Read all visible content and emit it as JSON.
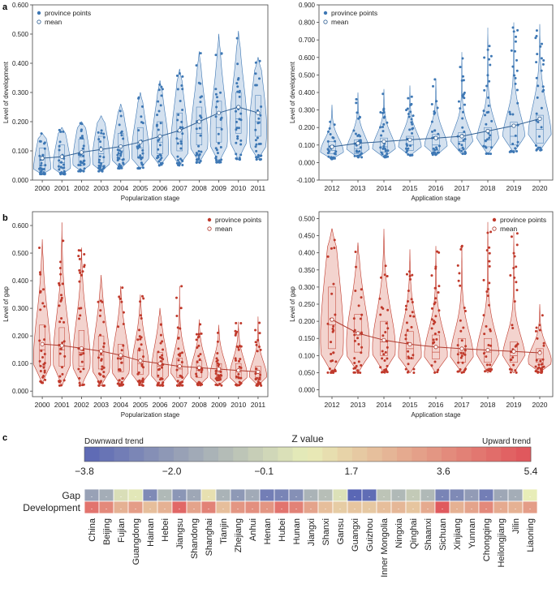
{
  "panel_letters": [
    "a",
    "b",
    "c"
  ],
  "colors": {
    "blue": "#3d77b4",
    "blue_fill": "#cddcec",
    "blue_mean": "#2f5f93",
    "red": "#c0392b",
    "red_fill": "#f1cbc5",
    "red_mean": "#b03a2e",
    "axis": "#444444",
    "scale_low": "#5a67b5",
    "scale_mid": "#e8edb8",
    "scale_high": "#e0535a"
  },
  "chart_data": [
    {
      "type": "violin",
      "id": "a_left",
      "panel": "a",
      "xlabel": "Popularization stage",
      "ylabel": "Level of development",
      "categories": [
        "2000",
        "2001",
        "2002",
        "2003",
        "2004",
        "2005",
        "2006",
        "2007",
        "2008",
        "2009",
        "2010",
        "2011"
      ],
      "ylim": [
        0,
        0.6
      ],
      "yticks": [
        0.0,
        0.1,
        0.2,
        0.3,
        0.4,
        0.5,
        0.6
      ],
      "ytick_labels": [
        "0.000",
        "0.100",
        "0.200",
        "0.300",
        "0.400",
        "0.500",
        "0.600"
      ],
      "legend": [
        "province points",
        "mean"
      ],
      "max": [
        0.16,
        0.18,
        0.2,
        0.22,
        0.26,
        0.3,
        0.34,
        0.38,
        0.44,
        0.5,
        0.51,
        0.42
      ],
      "min": [
        0.02,
        0.02,
        0.03,
        0.03,
        0.04,
        0.04,
        0.05,
        0.05,
        0.06,
        0.06,
        0.07,
        0.07
      ],
      "median": [
        0.05,
        0.06,
        0.08,
        0.09,
        0.1,
        0.11,
        0.13,
        0.14,
        0.16,
        0.18,
        0.21,
        0.2
      ],
      "q1": [
        0.03,
        0.04,
        0.05,
        0.06,
        0.07,
        0.08,
        0.09,
        0.1,
        0.12,
        0.13,
        0.16,
        0.15
      ],
      "q3": [
        0.11,
        0.12,
        0.14,
        0.15,
        0.16,
        0.18,
        0.2,
        0.23,
        0.25,
        0.27,
        0.3,
        0.29
      ],
      "mean": [
        0.075,
        0.08,
        0.095,
        0.105,
        0.115,
        0.13,
        0.15,
        0.17,
        0.2,
        0.23,
        0.25,
        0.23
      ]
    },
    {
      "type": "violin",
      "id": "a_right",
      "panel": "a",
      "xlabel": "Application stage",
      "ylabel": "Level of development",
      "categories": [
        "2012",
        "2013",
        "2014",
        "2015",
        "2016",
        "2017",
        "2018",
        "2019",
        "2020"
      ],
      "ylim": [
        -0.1,
        0.9
      ],
      "yticks": [
        -0.1,
        0.0,
        0.1,
        0.2,
        0.3,
        0.4,
        0.5,
        0.6,
        0.7,
        0.8,
        0.9
      ],
      "ytick_labels": [
        "-0.100",
        "0.000",
        "0.100",
        "0.200",
        "0.300",
        "0.400",
        "0.500",
        "0.600",
        "0.700",
        "0.800",
        "0.900"
      ],
      "legend": [
        "province points",
        "mean"
      ],
      "max": [
        0.33,
        0.4,
        0.42,
        0.44,
        0.48,
        0.63,
        0.77,
        0.8,
        0.79
      ],
      "min": [
        0.02,
        0.03,
        0.03,
        0.04,
        0.04,
        0.05,
        0.05,
        0.06,
        0.07
      ],
      "median": [
        0.07,
        0.08,
        0.09,
        0.1,
        0.1,
        0.12,
        0.13,
        0.15,
        0.19
      ],
      "q1": [
        0.05,
        0.05,
        0.06,
        0.07,
        0.07,
        0.08,
        0.09,
        0.1,
        0.11
      ],
      "q3": [
        0.12,
        0.13,
        0.14,
        0.15,
        0.16,
        0.17,
        0.2,
        0.23,
        0.27
      ],
      "mean": [
        0.09,
        0.11,
        0.12,
        0.13,
        0.14,
        0.15,
        0.18,
        0.21,
        0.25
      ]
    },
    {
      "type": "violin",
      "id": "b_left",
      "panel": "b",
      "xlabel": "Popularization stage",
      "ylabel": "Level of gap",
      "categories": [
        "2000",
        "2001",
        "2002",
        "2003",
        "2004",
        "2005",
        "2006",
        "2007",
        "2008",
        "2009",
        "2010",
        "2011"
      ],
      "ylim": [
        -0.02,
        0.65
      ],
      "yticks": [
        0.0,
        0.1,
        0.2,
        0.3,
        0.4,
        0.5,
        0.6
      ],
      "ytick_labels": [
        "0.000",
        "0.100",
        "0.200",
        "0.300",
        "0.400",
        "0.500",
        "0.600"
      ],
      "legend": [
        "province points",
        "mean"
      ],
      "max": [
        0.55,
        0.61,
        0.52,
        0.42,
        0.38,
        0.35,
        0.3,
        0.38,
        0.26,
        0.24,
        0.25,
        0.27
      ],
      "min": [
        0.03,
        0.02,
        0.02,
        0.02,
        0.02,
        0.02,
        0.02,
        0.02,
        0.02,
        0.02,
        0.02,
        0.02
      ],
      "median": [
        0.15,
        0.15,
        0.14,
        0.13,
        0.12,
        0.1,
        0.09,
        0.08,
        0.075,
        0.07,
        0.07,
        0.065
      ],
      "q1": [
        0.09,
        0.09,
        0.09,
        0.08,
        0.07,
        0.06,
        0.05,
        0.05,
        0.05,
        0.045,
        0.045,
        0.04
      ],
      "q3": [
        0.24,
        0.23,
        0.22,
        0.2,
        0.17,
        0.15,
        0.14,
        0.12,
        0.11,
        0.1,
        0.1,
        0.09
      ],
      "mean": [
        0.17,
        0.165,
        0.155,
        0.145,
        0.13,
        0.11,
        0.1,
        0.09,
        0.085,
        0.08,
        0.075,
        0.07
      ]
    },
    {
      "type": "violin",
      "id": "b_right",
      "panel": "b",
      "xlabel": "Application stage",
      "ylabel": "Level of gap",
      "categories": [
        "2012",
        "2013",
        "2014",
        "2015",
        "2016",
        "2017",
        "2018",
        "2019",
        "2020"
      ],
      "ylim": [
        -0.02,
        0.52
      ],
      "yticks": [
        0.0,
        0.05,
        0.1,
        0.15,
        0.2,
        0.25,
        0.3,
        0.35,
        0.4,
        0.45,
        0.5
      ],
      "ytick_labels": [
        "0.000",
        "0.050",
        "0.100",
        "0.150",
        "0.200",
        "0.250",
        "0.300",
        "0.350",
        "0.400",
        "0.450",
        "0.500"
      ],
      "legend": [
        "province points",
        "mean"
      ],
      "max": [
        0.47,
        0.43,
        0.47,
        0.41,
        0.42,
        0.42,
        0.49,
        0.46,
        0.25
      ],
      "min": [
        0.05,
        0.05,
        0.05,
        0.05,
        0.05,
        0.05,
        0.05,
        0.05,
        0.05
      ],
      "median": [
        0.19,
        0.16,
        0.14,
        0.12,
        0.11,
        0.11,
        0.11,
        0.1,
        0.09
      ],
      "q1": [
        0.12,
        0.11,
        0.1,
        0.09,
        0.09,
        0.08,
        0.08,
        0.08,
        0.08
      ],
      "q3": [
        0.3,
        0.22,
        0.2,
        0.17,
        0.16,
        0.15,
        0.15,
        0.14,
        0.12
      ],
      "mean": [
        0.205,
        0.165,
        0.145,
        0.133,
        0.125,
        0.12,
        0.116,
        0.112,
        0.108
      ]
    },
    {
      "type": "heatmap",
      "id": "c_heatmap",
      "panel": "c",
      "title": "Z value",
      "scale_left_label": "Downward trend",
      "scale_right_label": "Upward trend",
      "scale_ticks": [
        -3.8,
        -2.0,
        -0.1,
        1.7,
        3.6,
        5.4
      ],
      "scale_tick_labels": [
        "−3.8",
        "−2.0",
        "−0.1",
        "1.7",
        "3.6",
        "5.4"
      ],
      "rows": [
        "Gap",
        "Development"
      ],
      "columns": [
        "China",
        "Beijing",
        "Fujian",
        "Guangdong",
        "Hainan",
        "Hebei",
        "Jiangsu",
        "Shandong",
        "Shanghai",
        "Tianjin",
        "Zhejiang",
        "Anhui",
        "Henan",
        "Hubei",
        "Hunan",
        "Jiangxi",
        "Shanxi",
        "Gansu",
        "Guangxi",
        "Guizhou",
        "Inner Mongolia",
        "Ningxia",
        "Qinghai",
        "Shaanxi",
        "Sichuan",
        "Xinjiang",
        "Yunnan",
        "Chongqing",
        "Heilongjiang",
        "Jilin",
        "Liaoning"
      ],
      "values": [
        [
          -1.8,
          -1.4,
          0.3,
          0.6,
          -2.6,
          -1.0,
          -2.2,
          -1.6,
          1.2,
          -1.2,
          -2.1,
          -1.5,
          -3.0,
          -2.8,
          -2.4,
          -1.2,
          -0.8,
          0.4,
          -3.8,
          -3.6,
          -0.6,
          -1.0,
          -0.4,
          -1.0,
          -2.8,
          -2.6,
          -2.0,
          -3.0,
          -1.6,
          -1.4,
          0.8
        ],
        [
          4.4,
          3.8,
          2.6,
          3.2,
          2.2,
          2.6,
          4.8,
          3.0,
          4.0,
          2.2,
          3.4,
          3.6,
          3.4,
          4.4,
          4.0,
          3.0,
          2.2,
          1.8,
          2.0,
          1.9,
          2.2,
          2.4,
          2.0,
          2.8,
          5.2,
          2.6,
          3.0,
          3.8,
          2.8,
          2.6,
          3.2
        ]
      ],
      "cell_label": "·"
    }
  ]
}
